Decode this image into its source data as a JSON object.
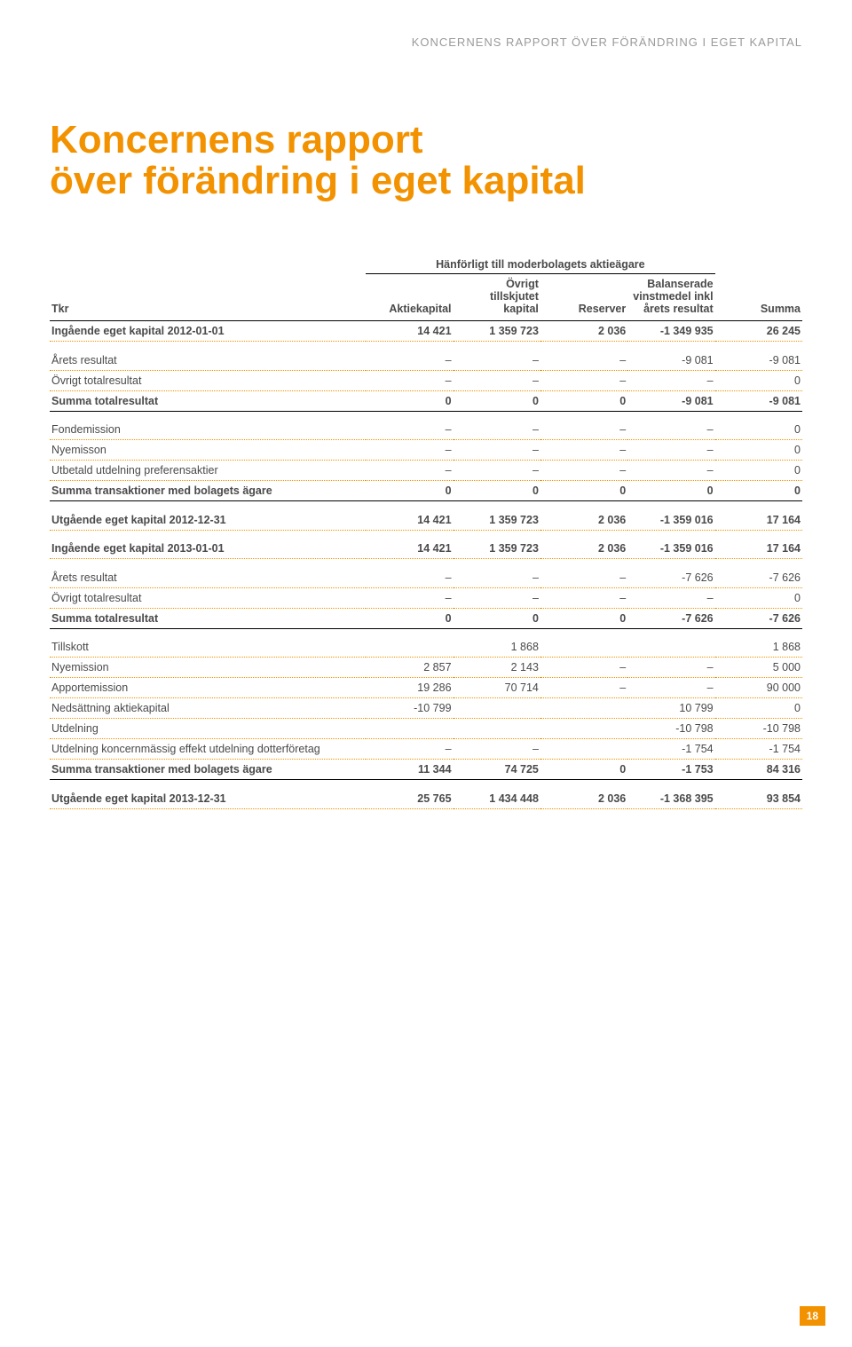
{
  "runningHeader": "KONCERNENS RAPPORT ÖVER FÖRÄNDRING I EGET KAPITAL",
  "title": "Koncernens rapport\növer förändring i eget kapital",
  "pageNumber": "18",
  "colors": {
    "accent": "#f39200",
    "text": "#4a4a4a",
    "muted": "#9a9a9a",
    "bg": "#ffffff",
    "rule": "#000000"
  },
  "typography": {
    "body_fontsize_pt": 9.5,
    "title_fontsize_pt": 33,
    "header_fontsize_pt": 10
  },
  "table": {
    "superHeader": "Hänförligt till moderbolagets aktieägare",
    "columns": [
      "Tkr",
      "Aktiekapital",
      "Övrigt\ntillskjutet\nkapital",
      "Reserver",
      "Balanserade\nvinstmedel inkl\nårets resultat",
      "Summa"
    ],
    "rows": [
      {
        "label": "Ingående eget kapital 2012-01-01",
        "v": [
          "14 421",
          "1 359 723",
          "2 036",
          "-1 349 935",
          "26 245"
        ],
        "style": "bold dotted"
      },
      {
        "style": "spacer"
      },
      {
        "label": "Årets resultat",
        "v": [
          "–",
          "–",
          "–",
          "-9 081",
          "-9 081"
        ],
        "style": "dotted"
      },
      {
        "label": "Övrigt totalresultat",
        "v": [
          "–",
          "–",
          "–",
          "–",
          "0"
        ],
        "style": "dotted"
      },
      {
        "label": "Summa totalresultat",
        "v": [
          "0",
          "0",
          "0",
          "-9 081",
          "-9 081"
        ],
        "style": "bold solid"
      },
      {
        "style": "spacer"
      },
      {
        "label": "Fondemission",
        "v": [
          "–",
          "–",
          "–",
          "–",
          "0"
        ],
        "style": "dotted"
      },
      {
        "label": "Nyemisson",
        "v": [
          "–",
          "–",
          "–",
          "–",
          "0"
        ],
        "style": "dotted"
      },
      {
        "label": "Utbetald utdelning preferensaktier",
        "v": [
          "–",
          "–",
          "–",
          "–",
          "0"
        ],
        "style": "dotted"
      },
      {
        "label": "Summa transaktioner med bolagets ägare",
        "v": [
          "0",
          "0",
          "0",
          "0",
          "0"
        ],
        "style": "bold solid"
      },
      {
        "style": "spacer"
      },
      {
        "label": "Utgående eget kapital 2012-12-31",
        "v": [
          "14 421",
          "1 359 723",
          "2 036",
          "-1 359 016",
          "17 164"
        ],
        "style": "bold dotted"
      },
      {
        "style": "spacer"
      },
      {
        "label": "Ingående eget kapital 2013-01-01",
        "v": [
          "14 421",
          "1 359 723",
          "2 036",
          "-1 359 016",
          "17 164"
        ],
        "style": "bold dotted"
      },
      {
        "style": "spacer"
      },
      {
        "label": "Årets resultat",
        "v": [
          "–",
          "–",
          "–",
          "-7 626",
          "-7 626"
        ],
        "style": "dotted"
      },
      {
        "label": "Övrigt totalresultat",
        "v": [
          "–",
          "–",
          "–",
          "–",
          "0"
        ],
        "style": "dotted"
      },
      {
        "label": "Summa totalresultat",
        "v": [
          "0",
          "0",
          "0",
          "-7 626",
          "-7 626"
        ],
        "style": "bold solid"
      },
      {
        "style": "spacer"
      },
      {
        "label": "Tillskott",
        "v": [
          "",
          "1 868",
          "",
          "",
          "1 868"
        ],
        "style": "dotted"
      },
      {
        "label": "Nyemission",
        "v": [
          "2 857",
          "2 143",
          "–",
          "–",
          "5 000"
        ],
        "style": "dotted"
      },
      {
        "label": "Apportemission",
        "v": [
          "19 286",
          "70 714",
          "–",
          "–",
          "90 000"
        ],
        "style": "dotted"
      },
      {
        "label": "Nedsättning aktiekapital",
        "v": [
          "-10 799",
          "",
          "",
          "10 799",
          "0"
        ],
        "style": "dotted"
      },
      {
        "label": "Utdelning",
        "v": [
          "",
          "",
          "",
          "-10 798",
          "-10 798"
        ],
        "style": "dotted"
      },
      {
        "label": "Utdelning koncernmässig effekt utdelning dotterföretag",
        "v": [
          "–",
          "–",
          "",
          "-1 754",
          "-1 754"
        ],
        "style": "dotted"
      },
      {
        "label": "Summa transaktioner med bolagets ägare",
        "v": [
          "11 344",
          "74 725",
          "0",
          "-1 753",
          "84 316"
        ],
        "style": "bold solid"
      },
      {
        "style": "spacer"
      },
      {
        "label": "Utgående eget kapital 2013-12-31",
        "v": [
          "25 765",
          "1 434 448",
          "2 036",
          "-1 368 395",
          "93 854"
        ],
        "style": "bold dotted"
      }
    ]
  }
}
